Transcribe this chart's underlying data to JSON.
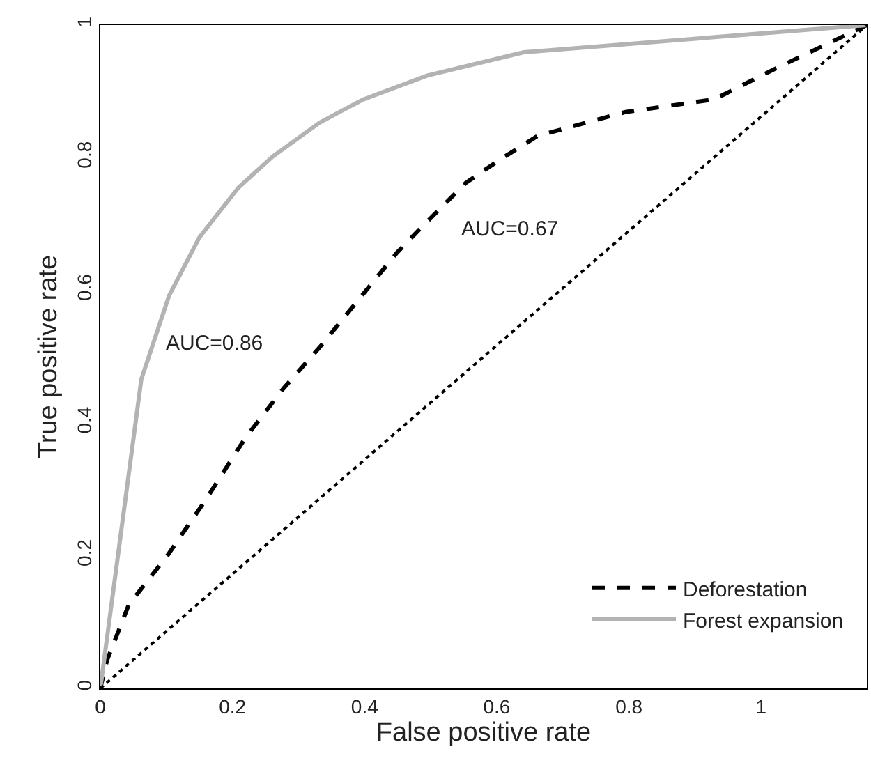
{
  "chart_data": {
    "type": "line",
    "xlabel": "False positive rate",
    "ylabel": "True positive rate",
    "xlim": [
      0,
      1.16
    ],
    "ylim": [
      0,
      1
    ],
    "xticks": [
      0,
      0.2,
      0.4,
      0.6,
      0.8,
      1
    ],
    "yticks": [
      0,
      0.2,
      0.4,
      0.6,
      0.8,
      1
    ],
    "legend": "bottom right",
    "series": [
      {
        "name": "Deforestation",
        "color": "#000000",
        "line_style": "dashed",
        "x": [
          0,
          0.01,
          0.043,
          0.102,
          0.16,
          0.219,
          0.277,
          0.336,
          0.394,
          0.449,
          0.486,
          0.553,
          0.603,
          0.662,
          0.795,
          0.929,
          1.021,
          1.16
        ],
        "values": [
          0,
          0.042,
          0.126,
          0.201,
          0.285,
          0.377,
          0.452,
          0.519,
          0.59,
          0.657,
          0.695,
          0.762,
          0.796,
          0.833,
          0.869,
          0.888,
          0.934,
          1
        ]
      },
      {
        "name": "Forest expansion",
        "color": "#b3b3b3",
        "line_style": "solid",
        "x": [
          0,
          0.062,
          0.104,
          0.15,
          0.209,
          0.261,
          0.332,
          0.398,
          0.495,
          0.641,
          1.16
        ],
        "values": [
          0,
          0.466,
          0.592,
          0.68,
          0.755,
          0.802,
          0.853,
          0.888,
          0.924,
          0.959,
          1
        ]
      },
      {
        "color": "#000000",
        "line_style": "dotted",
        "x": [
          0,
          1.16
        ],
        "values": [
          0,
          1
        ]
      }
    ],
    "annotations": [
      "AUC=0.86",
      "AUC=0.67"
    ]
  }
}
